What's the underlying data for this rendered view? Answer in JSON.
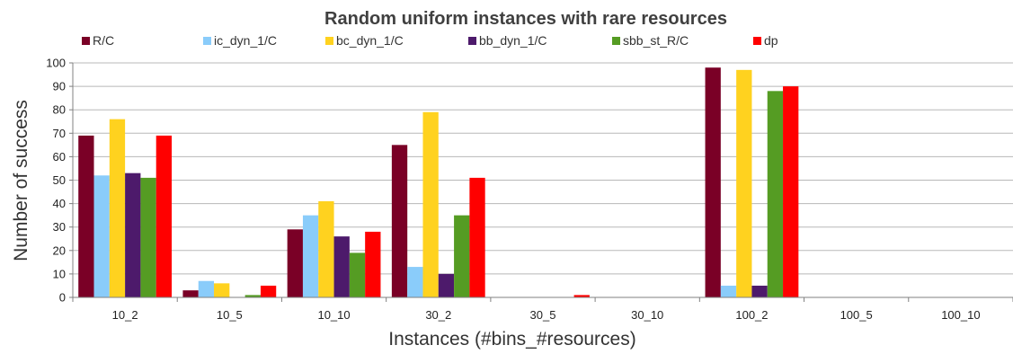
{
  "chart_data": {
    "type": "bar",
    "title": "Random uniform instances with rare resources",
    "xlabel": "Instances (#bins_#resources)",
    "ylabel": "Number of success",
    "ylim": [
      0,
      100
    ],
    "yticks": [
      0,
      10,
      20,
      30,
      40,
      50,
      60,
      70,
      80,
      90,
      100
    ],
    "grid": true,
    "legend_position": "top",
    "categories": [
      "10_2",
      "10_5",
      "10_10",
      "30_2",
      "30_5",
      "30_10",
      "100_2",
      "100_5",
      "100_10"
    ],
    "series": [
      {
        "name": "R/C",
        "color": "#7a0026",
        "values": [
          69,
          3,
          29,
          65,
          0,
          0,
          98,
          0,
          0
        ]
      },
      {
        "name": "ic_dyn_1/C",
        "color": "#8accfa",
        "values": [
          52,
          7,
          35,
          13,
          0,
          0,
          5,
          0,
          0
        ]
      },
      {
        "name": "bc_dyn_1/C",
        "color": "#ffd21f",
        "values": [
          76,
          6,
          41,
          79,
          0,
          0,
          97,
          0,
          0
        ]
      },
      {
        "name": "bb_dyn_1/C",
        "color": "#4d1a6b",
        "values": [
          53,
          0,
          26,
          10,
          0,
          0,
          5,
          0,
          0
        ]
      },
      {
        "name": "sbb_st_R/C",
        "color": "#559c23",
        "values": [
          51,
          1,
          19,
          35,
          0,
          0,
          88,
          0,
          0
        ]
      },
      {
        "name": "dp",
        "color": "#ff0000",
        "values": [
          69,
          5,
          28,
          51,
          1,
          0,
          90,
          0,
          0
        ]
      }
    ]
  }
}
